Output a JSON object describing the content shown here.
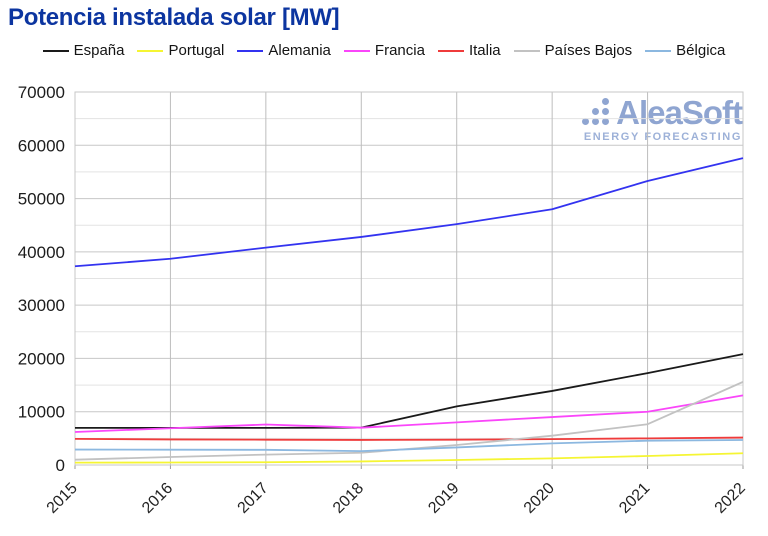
{
  "header": {
    "title": "Potencia instalada solar [MW]"
  },
  "watermark": {
    "wordmark": "AleaSoft",
    "tagline": "ENERGY FORECASTING",
    "color": "#8fa5d1"
  },
  "chart_data": {
    "type": "line",
    "title": "Potencia instalada solar [MW]",
    "title_color": "#0c35a0",
    "x": [
      2015,
      2016,
      2017,
      2018,
      2019,
      2020,
      2021,
      2022
    ],
    "xlabel": "",
    "ylabel": "",
    "ylim": [
      0,
      70000
    ],
    "y_major_step": 10000,
    "y_minor_step": 5000,
    "grid": true,
    "legend_position": "top",
    "series": [
      {
        "name": "España",
        "color": "#1a1a1a",
        "values": [
          6970,
          6970,
          6970,
          7020,
          11000,
          13900,
          17250,
          20800
        ]
      },
      {
        "name": "Portugal",
        "color": "#f5f533",
        "values": [
          450,
          470,
          520,
          670,
          940,
          1250,
          1690,
          2200
        ]
      },
      {
        "name": "Alemania",
        "color": "#3333f0",
        "values": [
          37300,
          38700,
          40800,
          42800,
          45200,
          48000,
          53300,
          57600
        ]
      },
      {
        "name": "Francia",
        "color": "#fa46fa",
        "values": [
          6200,
          6900,
          7600,
          7000,
          8000,
          9000,
          10000,
          13070
        ]
      },
      {
        "name": "Italia",
        "color": "#ef3b3b",
        "values": [
          4900,
          4800,
          4750,
          4700,
          4750,
          4850,
          5000,
          5150
        ]
      },
      {
        "name": "Países Bajos",
        "color": "#c2c2c2",
        "values": [
          1000,
          1500,
          1950,
          2300,
          3750,
          5500,
          7650,
          15600
        ]
      },
      {
        "name": "Bélgica",
        "color": "#8cb8e0",
        "values": [
          2900,
          2870,
          2850,
          2600,
          3300,
          4060,
          4560,
          4690
        ]
      }
    ]
  }
}
